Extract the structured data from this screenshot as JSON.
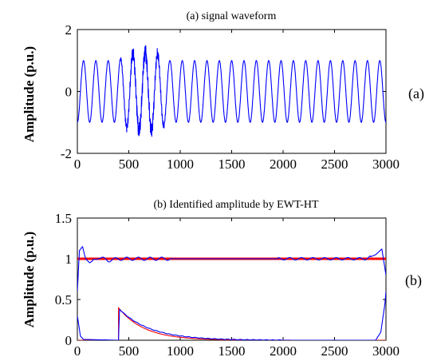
{
  "chart_data": [
    {
      "type": "line",
      "title": "(a) signal waveform",
      "side_label": "(a)",
      "ylabel": "Amplitude (p.u.)",
      "xlabel": "",
      "xlim": [
        0,
        3000
      ],
      "ylim": [
        -2,
        2
      ],
      "x_ticks": [
        "0",
        "500",
        "1000",
        "1500",
        "2000",
        "2500",
        "3000"
      ],
      "y_ticks": [
        "-2",
        "0",
        "2"
      ],
      "grid": false,
      "series": [
        {
          "color": "#0000ff",
          "description_values": {
            "cycles": 25,
            "nominal_amplitude": 1.05,
            "sample_x": [
              0,
              30,
              60,
              90,
              120,
              400,
              450,
              500,
              550,
              600,
              650,
              700,
              750,
              800,
              900,
              1000,
              1500,
              2000,
              2500,
              3000
            ],
            "sample_y": [
              -0.9,
              0.3,
              1.05,
              0.5,
              -0.9,
              0.2,
              -1.3,
              1.3,
              -1.0,
              1.2,
              -1.1,
              1.1,
              -0.9,
              0.9,
              -0.9,
              -0.9,
              -0.9,
              -0.9,
              -0.9,
              -0.9
            ]
          }
        }
      ]
    },
    {
      "type": "line",
      "title": "(b) Identified amplitude by EWT-HT",
      "side_label": "(b)",
      "ylabel": "Amplitude (p.u.)",
      "xlabel": "",
      "xlim": [
        0,
        3000
      ],
      "ylim": [
        0,
        1.5
      ],
      "x_ticks": [
        "0",
        "500",
        "1000",
        "1500",
        "2000",
        "2500",
        "3000"
      ],
      "y_ticks": [
        "0",
        "0.5",
        "1",
        "1.5"
      ],
      "grid": false,
      "series": [
        {
          "color": "#ff0000",
          "kind": "reference",
          "x": [
            0,
            3000
          ],
          "y": [
            1.0,
            1.0
          ]
        },
        {
          "color": "#ff0000",
          "kind": "reference",
          "x": [
            0,
            400,
            400,
            3000
          ],
          "y": [
            0,
            0,
            0.4,
            0.0
          ]
        },
        {
          "color": "#0000ff",
          "kind": "identified",
          "x": [
            0,
            20,
            50,
            80,
            120,
            200,
            300,
            400,
            1000,
            2000,
            2800,
            2900,
            2960,
            3000
          ],
          "y": [
            0.6,
            1.1,
            1.15,
            1.0,
            0.95,
            1.02,
            0.98,
            1.0,
            1.0,
            1.0,
            1.0,
            1.05,
            1.12,
            0.8
          ]
        },
        {
          "color": "#0000ff",
          "kind": "identified",
          "x": [
            0,
            30,
            60,
            400,
            410,
            500,
            700,
            1000,
            1500,
            2000,
            2900,
            2950,
            2990,
            3000
          ],
          "y": [
            0.3,
            0.05,
            0.01,
            0.0,
            0.38,
            0.3,
            0.17,
            0.08,
            0.02,
            0.0,
            0.0,
            0.1,
            0.45,
            0.6
          ]
        }
      ]
    }
  ]
}
